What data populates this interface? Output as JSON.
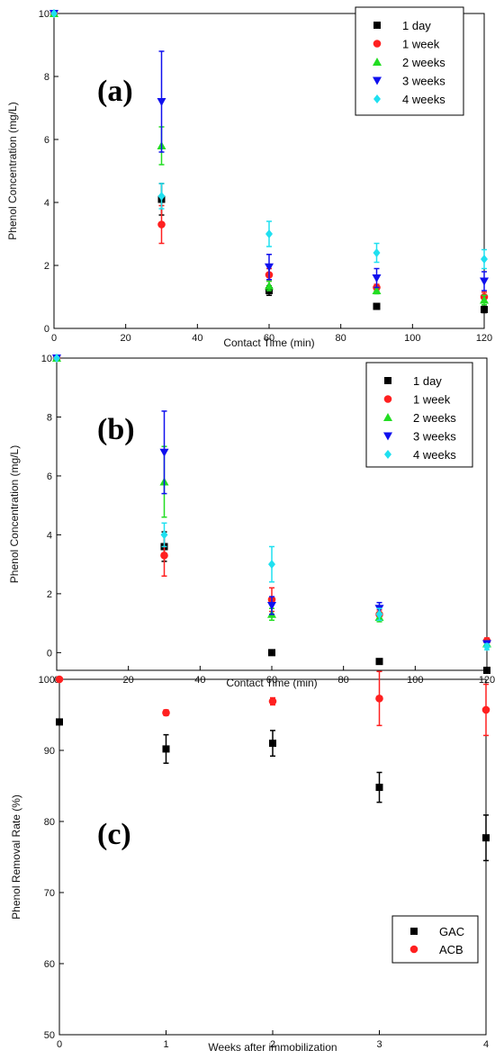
{
  "colors": {
    "1 day": "#000000",
    "1 week": "#ff2020",
    "2 weeks": "#22dd22",
    "3 weeks": "#1010ee",
    "4 weeks": "#1fe0f0",
    "GAC": "#000000",
    "ACB": "#ff2020"
  },
  "chart_data": [
    {
      "type": "scatter",
      "panel_label": "(a)",
      "xlabel": "Contact Time (min)",
      "ylabel": "Phenol Concentration (mg/L)",
      "xlim": [
        0,
        120
      ],
      "ylim": [
        0,
        10
      ],
      "xticks": [
        "0",
        "20",
        "40",
        "60",
        "80",
        "100",
        "120"
      ],
      "yticks": [
        "0",
        "2",
        "4",
        "6",
        "8",
        "10"
      ],
      "legend_position": "top-right",
      "series": [
        {
          "name": "1 day",
          "marker": "square",
          "x": [
            0,
            30,
            60,
            90,
            120
          ],
          "y": [
            10,
            4.1,
            1.2,
            0.7,
            0.6
          ],
          "err": [
            0,
            0.5,
            0.15,
            0,
            0.1
          ]
        },
        {
          "name": "1 week",
          "marker": "circle",
          "x": [
            0,
            30,
            60,
            90,
            120
          ],
          "y": [
            10,
            3.3,
            1.7,
            1.3,
            1.0
          ],
          "err": [
            0,
            0.6,
            0.2,
            0.1,
            0.15
          ]
        },
        {
          "name": "2 weeks",
          "marker": "triangle-up",
          "x": [
            0,
            30,
            60,
            90,
            120
          ],
          "y": [
            10,
            5.8,
            1.35,
            1.2,
            0.9
          ],
          "err": [
            0,
            0.6,
            0.15,
            0.1,
            0.15
          ]
        },
        {
          "name": "3 weeks",
          "marker": "triangle-down",
          "x": [
            0,
            30,
            60,
            90,
            120
          ],
          "y": [
            10,
            7.2,
            1.95,
            1.6,
            1.5
          ],
          "err": [
            0,
            1.6,
            0.4,
            0.3,
            0.3
          ]
        },
        {
          "name": "4 weeks",
          "marker": "diamond",
          "x": [
            0,
            30,
            60,
            90,
            120
          ],
          "y": [
            10,
            4.2,
            3.0,
            2.4,
            2.2
          ],
          "err": [
            0,
            0.4,
            0.4,
            0.3,
            0.3
          ]
        }
      ]
    },
    {
      "type": "scatter",
      "panel_label": "(b)",
      "xlabel": "Contact Time (min)",
      "ylabel": "Phenol Concentration (mg/L)",
      "xlim": [
        0,
        120
      ],
      "ylim": [
        -0.6,
        10
      ],
      "xticks": [
        "0",
        "20",
        "40",
        "60",
        "80",
        "100",
        "120"
      ],
      "yticks": [
        "0",
        "2",
        "4",
        "6",
        "8",
        "10"
      ],
      "legend_position": "top-right",
      "series": [
        {
          "name": "1 day",
          "marker": "square",
          "x": [
            0,
            30,
            60,
            90,
            120
          ],
          "y": [
            10,
            3.6,
            0.0,
            -0.3,
            -0.6
          ],
          "err": [
            0,
            0.5,
            0,
            0,
            0
          ]
        },
        {
          "name": "1 week",
          "marker": "circle",
          "x": [
            0,
            30,
            60,
            90,
            120
          ],
          "y": [
            10,
            3.3,
            1.8,
            1.3,
            0.4
          ],
          "err": [
            0,
            0.7,
            0.4,
            0.15,
            0.1
          ]
        },
        {
          "name": "2 weeks",
          "marker": "triangle-up",
          "x": [
            0,
            30,
            60,
            90,
            120
          ],
          "y": [
            10,
            5.8,
            1.3,
            1.2,
            0.3
          ],
          "err": [
            0,
            1.2,
            0.2,
            0.15,
            0.1
          ]
        },
        {
          "name": "3 weeks",
          "marker": "triangle-down",
          "x": [
            0,
            30,
            60,
            90,
            120
          ],
          "y": [
            10,
            6.8,
            1.6,
            1.5,
            0.3
          ],
          "err": [
            0,
            1.4,
            0.3,
            0.2,
            0.1
          ]
        },
        {
          "name": "4 weeks",
          "marker": "diamond",
          "x": [
            0,
            30,
            60,
            90,
            120
          ],
          "y": [
            10,
            4.0,
            3.0,
            1.3,
            0.2
          ],
          "err": [
            0,
            0.4,
            0.6,
            0.2,
            0.1
          ]
        }
      ]
    },
    {
      "type": "scatter",
      "panel_label": "(c)",
      "xlabel": "Weeks after immobilization",
      "ylabel": "Phenol Removal Rate (%)",
      "xlim": [
        0,
        4
      ],
      "ylim": [
        50,
        100
      ],
      "xticks": [
        "0",
        "1",
        "2",
        "3",
        "4"
      ],
      "yticks": [
        "50",
        "60",
        "70",
        "80",
        "90",
        "100"
      ],
      "legend_position": "bottom-right",
      "series": [
        {
          "name": "GAC",
          "marker": "square",
          "x": [
            0,
            1,
            2,
            3,
            4
          ],
          "y": [
            94,
            90.2,
            91,
            84.8,
            77.7
          ],
          "err": [
            0,
            2,
            1.8,
            2.1,
            3.2
          ]
        },
        {
          "name": "ACB",
          "marker": "circle",
          "x": [
            0,
            1,
            2,
            3,
            4
          ],
          "y": [
            100,
            95.3,
            96.9,
            97.3,
            95.7
          ],
          "err": [
            0,
            0.4,
            0.5,
            3.8,
            3.6
          ]
        }
      ]
    }
  ]
}
